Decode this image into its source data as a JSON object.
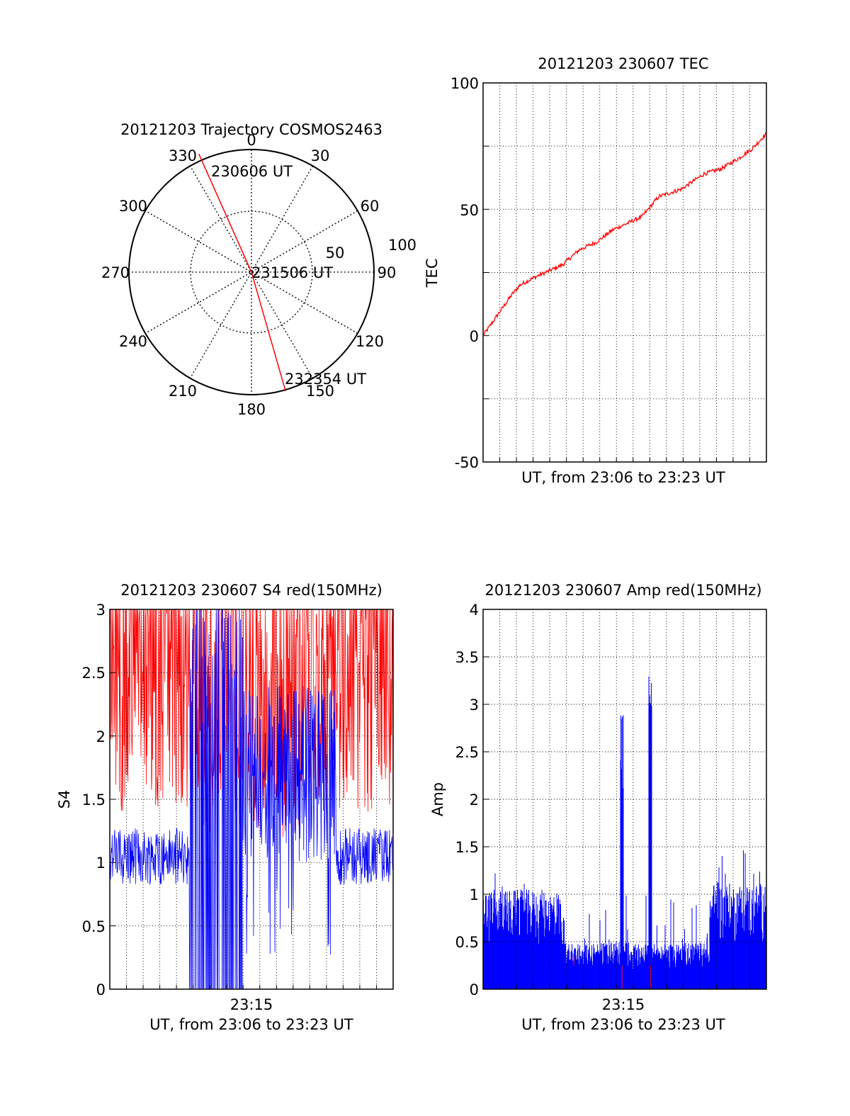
{
  "colors": {
    "red": "#ff0000",
    "blue": "#0000ff",
    "grid": "#000000"
  },
  "chart_data": [
    {
      "type": "polar",
      "title": "20121203 Trajectory COSMOS2463",
      "azimuth_labels": [
        "0",
        "30",
        "60",
        "90",
        "120",
        "150",
        "180",
        "210",
        "240",
        "270",
        "300",
        "330"
      ],
      "radial_labels": [
        "50",
        "100"
      ],
      "trajectory": {
        "color": "red",
        "points": [
          {
            "azimuth_deg": 336,
            "zenith_deg": 95,
            "label": "230606 UT"
          },
          {
            "azimuth_deg": 0,
            "zenith_deg": 0,
            "label": "231506 UT"
          },
          {
            "azimuth_deg": 164,
            "zenith_deg": 91,
            "label": "232354 UT"
          }
        ]
      }
    },
    {
      "type": "line",
      "title": "20121203 230607 TEC",
      "xlabel": "UT, from 23:06 to 23:23 UT",
      "ylabel": "TEC",
      "ylim": [
        -50,
        100
      ],
      "yticks": [
        "100",
        "50",
        "0",
        "-50"
      ],
      "grid": true,
      "series": [
        {
          "color": "red",
          "x_frac": [
            0,
            0.05,
            0.1,
            0.13,
            0.18,
            0.22,
            0.28,
            0.34,
            0.4,
            0.46,
            0.5,
            0.56,
            0.62,
            0.7,
            0.78,
            0.84,
            0.9,
            0.95,
            1.0
          ],
          "values": [
            0,
            8,
            16,
            20,
            23,
            25,
            28,
            34,
            37,
            42,
            44,
            47,
            55,
            58,
            64,
            66,
            70,
            74,
            80
          ]
        }
      ]
    },
    {
      "type": "line",
      "title": "20121203 230607 S4 red(150MHz)",
      "xlabel": "UT, from 23:06 to 23:23 UT",
      "ylabel": "S4",
      "ylim": [
        0,
        3
      ],
      "yticks": [
        "0",
        "0.5",
        "1",
        "1.5",
        "2",
        "2.5",
        "3"
      ],
      "xticks": [
        "23:15"
      ],
      "grid": true,
      "series": [
        {
          "color": "red",
          "description_level": 2.2
        },
        {
          "color": "blue",
          "description_level": 1.05
        }
      ]
    },
    {
      "type": "line",
      "title": "20121203 230607 Amp red(150MHz)",
      "xlabel": "UT, from 23:06 to 23:23 UT",
      "ylabel": "Amp",
      "ylim": [
        0,
        4
      ],
      "yticks": [
        "0",
        "0.5",
        "1",
        "1.5",
        "2",
        "2.5",
        "3",
        "3.5",
        "4"
      ],
      "xticks": [
        "23:15"
      ],
      "grid": true,
      "series": [
        {
          "color": "blue",
          "segments": [
            {
              "x_frac": [
                0,
                0.28
              ],
              "level": 0.75
            },
            {
              "x_frac": [
                0.28,
                0.8
              ],
              "level": 0.35
            },
            {
              "x_frac": [
                0.8,
                1.0
              ],
              "level": 0.8
            }
          ],
          "spikes": [
            {
              "x_frac": 0.49,
              "value": 3.0
            },
            {
              "x_frac": 0.59,
              "value": 3.4
            }
          ]
        },
        {
          "color": "red"
        }
      ]
    }
  ]
}
